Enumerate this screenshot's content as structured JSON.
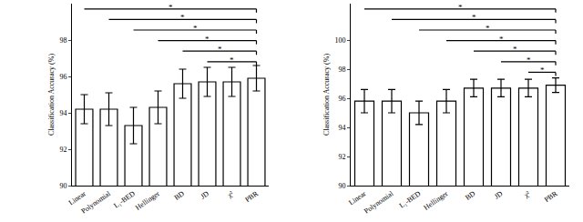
{
  "chart_data": [
    {
      "type": "bar",
      "y_label": "Classification Accuracy (%)",
      "categories": [
        "Linear",
        "Polynomial",
        "L₁-BED",
        "Hellinger",
        "BD",
        "JD",
        "χ²",
        "PBR"
      ],
      "values": [
        94.2,
        94.2,
        93.3,
        94.3,
        95.6,
        95.7,
        95.7,
        95.9
      ],
      "errors": [
        0.8,
        0.9,
        1.0,
        0.9,
        0.8,
        0.8,
        0.8,
        0.7
      ],
      "color": "#ffffff",
      "ylim": [
        90,
        100
      ],
      "yticks": [
        90,
        92,
        94,
        96,
        98
      ],
      "annotations": [
        {
          "from": "Linear",
          "to": "PBR",
          "text": "*"
        },
        {
          "from": "Polynomial",
          "to": "PBR",
          "text": "*"
        },
        {
          "from": "L₁-BED",
          "to": "PBR",
          "text": "*"
        },
        {
          "from": "Hellinger",
          "to": "PBR",
          "text": "*"
        },
        {
          "from": "BD",
          "to": "PBR",
          "text": "*"
        },
        {
          "from": "JD",
          "to": "PBR",
          "text": "*"
        }
      ]
    },
    {
      "type": "bar",
      "y_label": "Classification Accuracy (%)",
      "categories": [
        "Linear",
        "Polynomial",
        "L₁-BED",
        "Hellinger",
        "BD",
        "JD",
        "χ²",
        "PBR"
      ],
      "values": [
        95.8,
        95.8,
        95.0,
        95.8,
        96.7,
        96.7,
        96.7,
        96.9
      ],
      "errors": [
        0.8,
        0.8,
        0.8,
        0.8,
        0.6,
        0.6,
        0.6,
        0.5
      ],
      "color": "#ffffff",
      "ylim": [
        90,
        102.5
      ],
      "yticks": [
        90,
        92,
        94,
        96,
        98,
        100
      ],
      "annotations": [
        {
          "from": "Linear",
          "to": "PBR",
          "text": "*"
        },
        {
          "from": "Polynomial",
          "to": "PBR",
          "text": "*"
        },
        {
          "from": "L₁-BED",
          "to": "PBR",
          "text": "*"
        },
        {
          "from": "Hellinger",
          "to": "PBR",
          "text": "*"
        },
        {
          "from": "BD",
          "to": "PBR",
          "text": "*"
        },
        {
          "from": "JD",
          "to": "PBR",
          "text": "*"
        },
        {
          "from": "χ²",
          "to": "PBR",
          "text": "*"
        }
      ]
    }
  ]
}
